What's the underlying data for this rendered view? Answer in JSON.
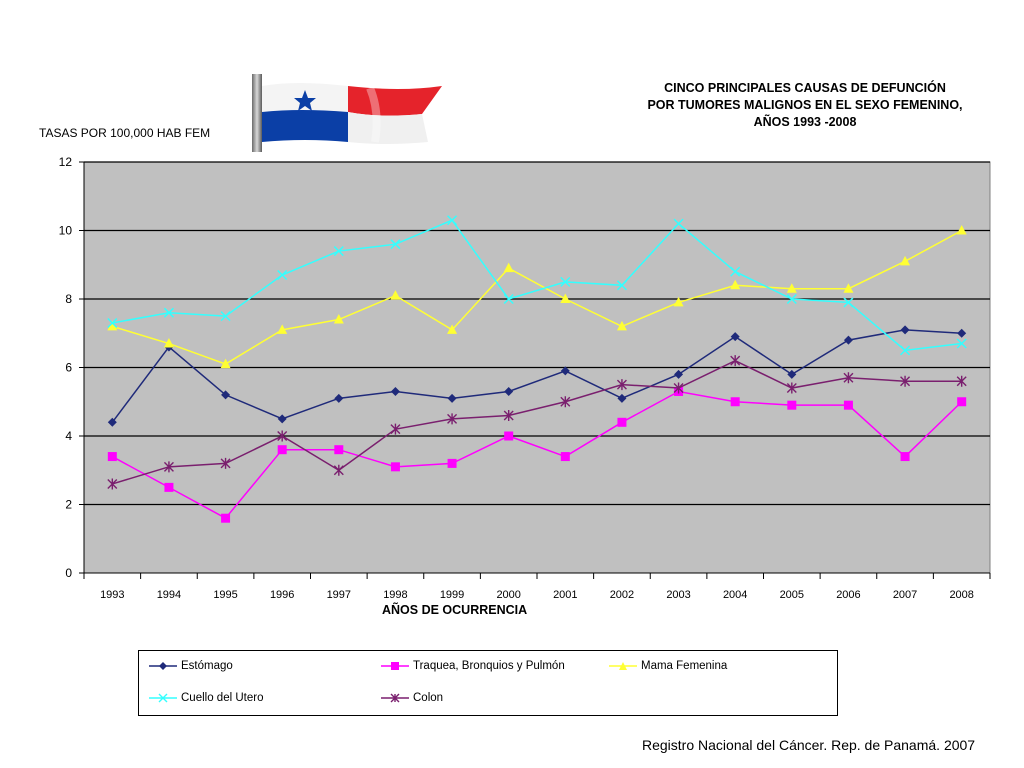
{
  "chart_data": {
    "type": "line",
    "title": [
      "CINCO PRINCIPALES CAUSAS DE DEFUNCIÓN",
      "POR TUMORES MALIGNOS EN EL SEXO FEMENINO,",
      "AÑOS 1993 -2008"
    ],
    "ylabel": "TASAS POR 100,000 HAB FEM",
    "xlabel": "AÑOS DE OCURRENCIA",
    "ylim": [
      0,
      12
    ],
    "yticks": [
      0,
      2,
      4,
      6,
      8,
      10,
      12
    ],
    "grid": true,
    "legend_position": "bottom",
    "categories": [
      "1993",
      "1994",
      "1995",
      "1996",
      "1997",
      "1998",
      "1999",
      "2000",
      "2001",
      "2002",
      "2003",
      "2004",
      "2005",
      "2006",
      "2007",
      "2008"
    ],
    "series": [
      {
        "name": "Estómago",
        "color": "#1f2a7a",
        "marker": "diamond",
        "values": [
          4.4,
          6.6,
          5.2,
          4.5,
          5.1,
          5.3,
          5.1,
          5.3,
          5.9,
          5.1,
          5.8,
          6.9,
          5.8,
          6.8,
          7.1,
          7.0
        ]
      },
      {
        "name": "Traquea, Bronquios y Pulmón",
        "color": "#ff00ff",
        "marker": "square",
        "values": [
          3.4,
          2.5,
          1.6,
          3.6,
          3.6,
          3.1,
          3.2,
          4.0,
          3.4,
          4.4,
          5.3,
          5.0,
          4.9,
          4.9,
          3.4,
          5.0
        ]
      },
      {
        "name": "Mama Femenina",
        "color": "#ffff33",
        "marker": "triangle",
        "values": [
          7.2,
          6.7,
          6.1,
          7.1,
          7.4,
          8.1,
          7.1,
          8.9,
          8.0,
          7.2,
          7.9,
          8.4,
          8.3,
          8.3,
          9.1,
          10.0
        ]
      },
      {
        "name": "Cuello del Utero",
        "color": "#33ffff",
        "marker": "x",
        "values": [
          7.3,
          7.6,
          7.5,
          8.7,
          9.4,
          9.6,
          10.3,
          8.0,
          8.5,
          8.4,
          10.2,
          8.8,
          8.0,
          7.9,
          6.5,
          6.7
        ]
      },
      {
        "name": "Colon",
        "color": "#7a1f6e",
        "marker": "star",
        "values": [
          2.6,
          3.1,
          3.2,
          4.0,
          3.0,
          4.2,
          4.5,
          4.6,
          5.0,
          5.5,
          5.4,
          6.2,
          5.4,
          5.7,
          5.6,
          5.6
        ]
      }
    ],
    "plot_background": "#c0c0c0"
  },
  "source": "Registro Nacional del Cáncer. Rep. de Panamá. 2007",
  "flag_icon": "panama-flag-icon",
  "flag_colors": {
    "red": "#e5232b",
    "blue": "#0b3fa6",
    "white": "#ffffff"
  }
}
